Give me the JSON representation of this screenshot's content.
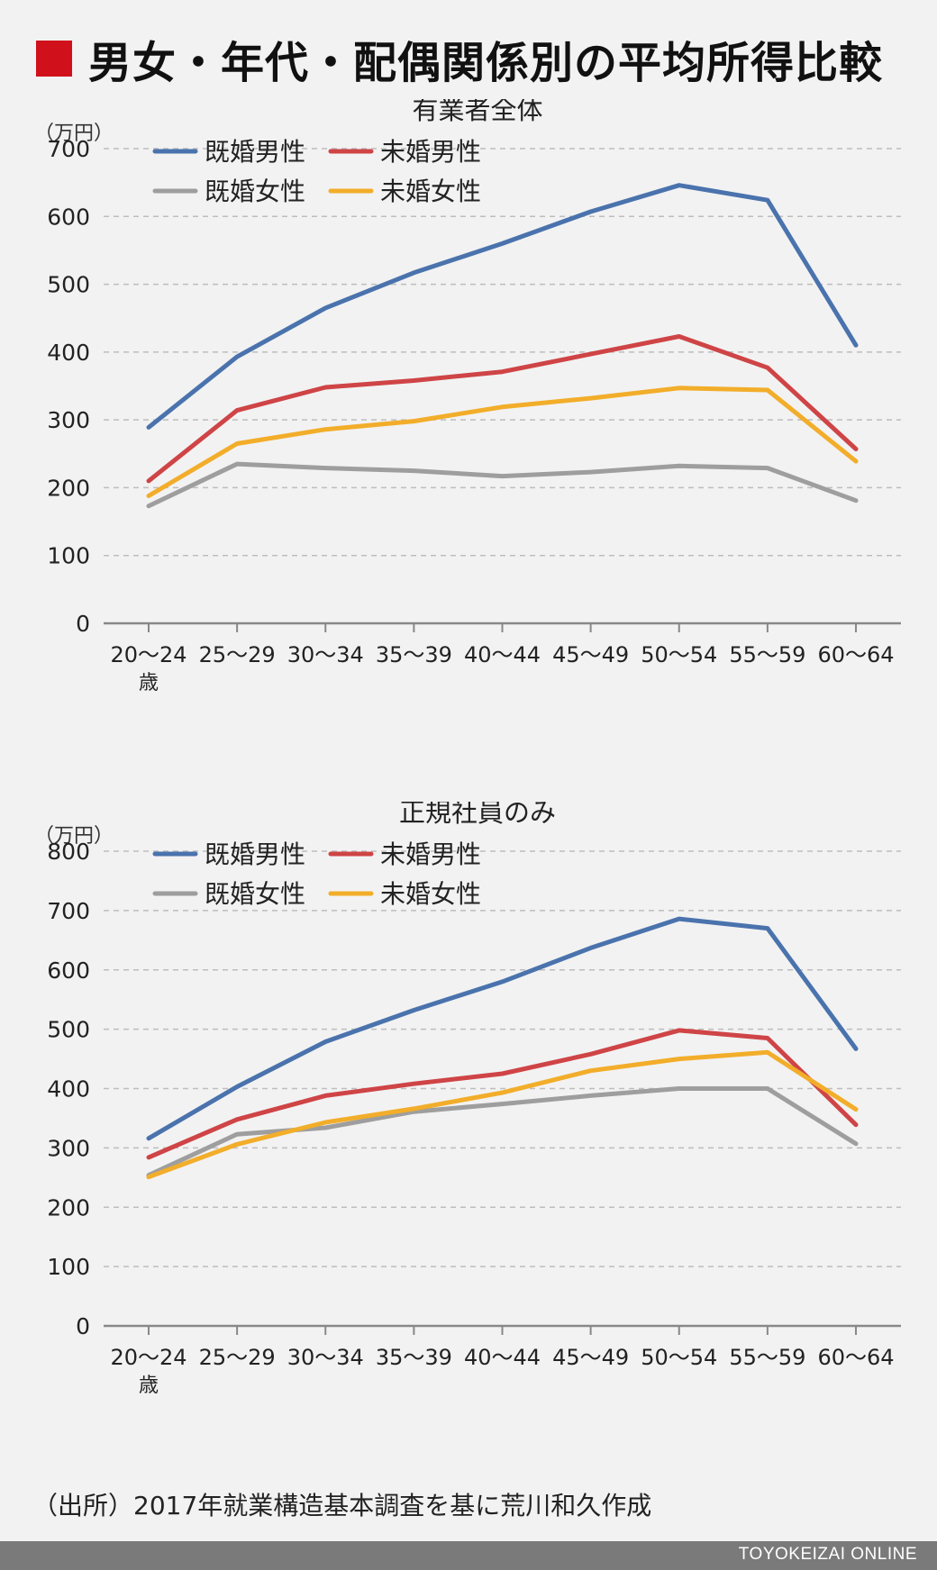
{
  "header": {
    "title": "男女・年代・配偶関係別の平均所得比較"
  },
  "source": "（出所）2017年就業構造基本調査を基に荒川和久作成",
  "brand": "TOYOKEIZAI ONLINE",
  "colors": {
    "married_male": "#4a73ad",
    "unmarried_male": "#cf4446",
    "married_female": "#9e9e9e",
    "unmarried_female": "#f2ad2a"
  },
  "chart_data": [
    {
      "type": "line",
      "title": "有業者全体",
      "unit": "（万円）",
      "categories": [
        "20〜24",
        "25〜29",
        "30〜34",
        "35〜39",
        "40〜44",
        "45〜49",
        "50〜54",
        "55〜59",
        "60〜64"
      ],
      "first_category_suffix": "歳",
      "ylim": [
        0,
        700
      ],
      "yticks": [
        0,
        100,
        200,
        300,
        400,
        500,
        600,
        700
      ],
      "grid": true,
      "legend": "top-left",
      "series": [
        {
          "name": "既婚男性",
          "color_key": "married_male",
          "values": [
            289,
            393,
            465,
            517,
            560,
            607,
            646,
            624,
            410
          ]
        },
        {
          "name": "未婚男性",
          "color_key": "unmarried_male",
          "values": [
            210,
            314,
            348,
            358,
            371,
            397,
            423,
            377,
            257
          ]
        },
        {
          "name": "既婚女性",
          "color_key": "married_female",
          "values": [
            173,
            235,
            229,
            225,
            217,
            223,
            232,
            229,
            181
          ]
        },
        {
          "name": "未婚女性",
          "color_key": "unmarried_female",
          "values": [
            188,
            265,
            286,
            298,
            319,
            332,
            347,
            344,
            239
          ]
        }
      ]
    },
    {
      "type": "line",
      "title": "正規社員のみ",
      "unit": "（万円）",
      "categories": [
        "20〜24",
        "25〜29",
        "30〜34",
        "35〜39",
        "40〜44",
        "45〜49",
        "50〜54",
        "55〜59",
        "60〜64"
      ],
      "first_category_suffix": "歳",
      "ylim": [
        0,
        800
      ],
      "yticks": [
        0,
        100,
        200,
        300,
        400,
        500,
        600,
        700,
        800
      ],
      "grid": true,
      "legend": "top-left",
      "series": [
        {
          "name": "既婚男性",
          "color_key": "married_male",
          "values": [
            316,
            403,
            479,
            532,
            580,
            637,
            686,
            670,
            467
          ]
        },
        {
          "name": "未婚男性",
          "color_key": "unmarried_male",
          "values": [
            284,
            348,
            388,
            408,
            425,
            458,
            498,
            485,
            339
          ]
        },
        {
          "name": "既婚女性",
          "color_key": "married_female",
          "values": [
            254,
            323,
            334,
            361,
            374,
            388,
            400,
            400,
            307
          ]
        },
        {
          "name": "未婚女性",
          "color_key": "unmarried_female",
          "values": [
            251,
            306,
            343,
            366,
            393,
            430,
            450,
            461,
            365
          ]
        }
      ]
    }
  ]
}
